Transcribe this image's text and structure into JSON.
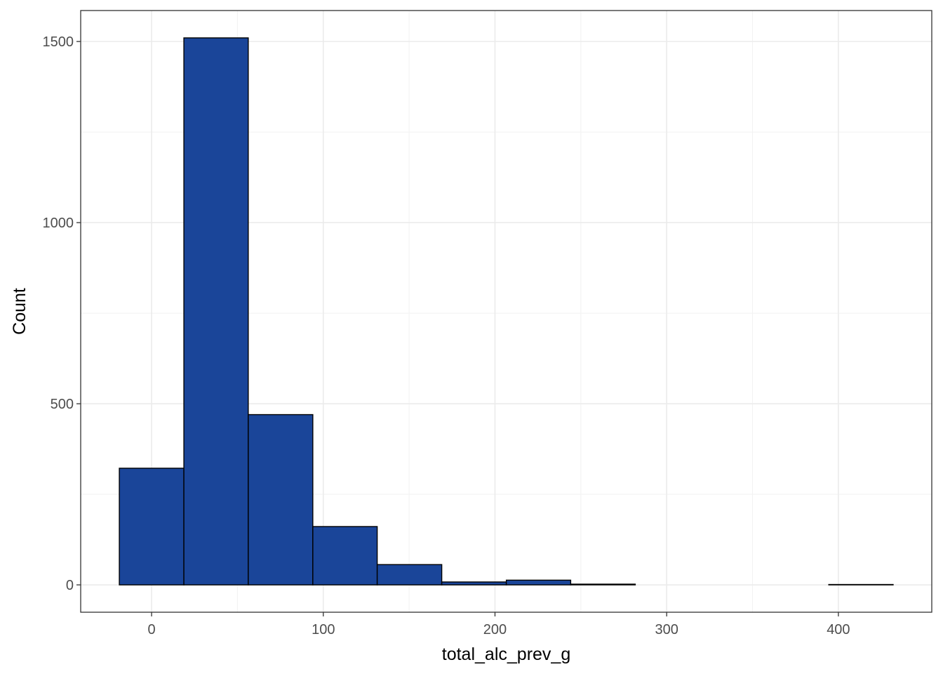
{
  "chart_data": {
    "type": "bar",
    "subtype": "histogram",
    "title": "",
    "xlabel": "total_alc_prev_g",
    "ylabel": "Count",
    "bins": [
      {
        "x_start": -18.8,
        "x_end": 18.8,
        "count": 322
      },
      {
        "x_start": 18.8,
        "x_end": 56.3,
        "count": 1510
      },
      {
        "x_start": 56.3,
        "x_end": 93.9,
        "count": 470
      },
      {
        "x_start": 93.9,
        "x_end": 131.4,
        "count": 161
      },
      {
        "x_start": 131.4,
        "x_end": 169.0,
        "count": 56
      },
      {
        "x_start": 169.0,
        "x_end": 206.6,
        "count": 8
      },
      {
        "x_start": 206.6,
        "x_end": 244.1,
        "count": 13
      },
      {
        "x_start": 244.1,
        "x_end": 281.7,
        "count": 2
      },
      {
        "x_start": 281.7,
        "x_end": 319.2,
        "count": 0
      },
      {
        "x_start": 319.2,
        "x_end": 356.8,
        "count": 0
      },
      {
        "x_start": 356.8,
        "x_end": 394.4,
        "count": 0
      },
      {
        "x_start": 394.4,
        "x_end": 431.9,
        "count": 1
      }
    ],
    "xlim": [
      -41.3,
      454.4
    ],
    "ylim": [
      -75.5,
      1585.5
    ],
    "x_ticks": [
      0,
      100,
      200,
      300,
      400
    ],
    "x_tick_labels": [
      "0",
      "100",
      "200",
      "300",
      "400"
    ],
    "y_ticks": [
      0,
      500,
      1000,
      1500
    ],
    "y_tick_labels": [
      "0",
      "500",
      "1000",
      "1500"
    ],
    "grid": true,
    "legend": "none",
    "colors": {
      "bar_fill": "#1a4599",
      "bar_stroke": "#000000",
      "grid_major": "#ebebeb",
      "grid_minor": "#f2f2f2",
      "panel_border": "#333333",
      "tick_text": "#4d4d4d"
    }
  }
}
